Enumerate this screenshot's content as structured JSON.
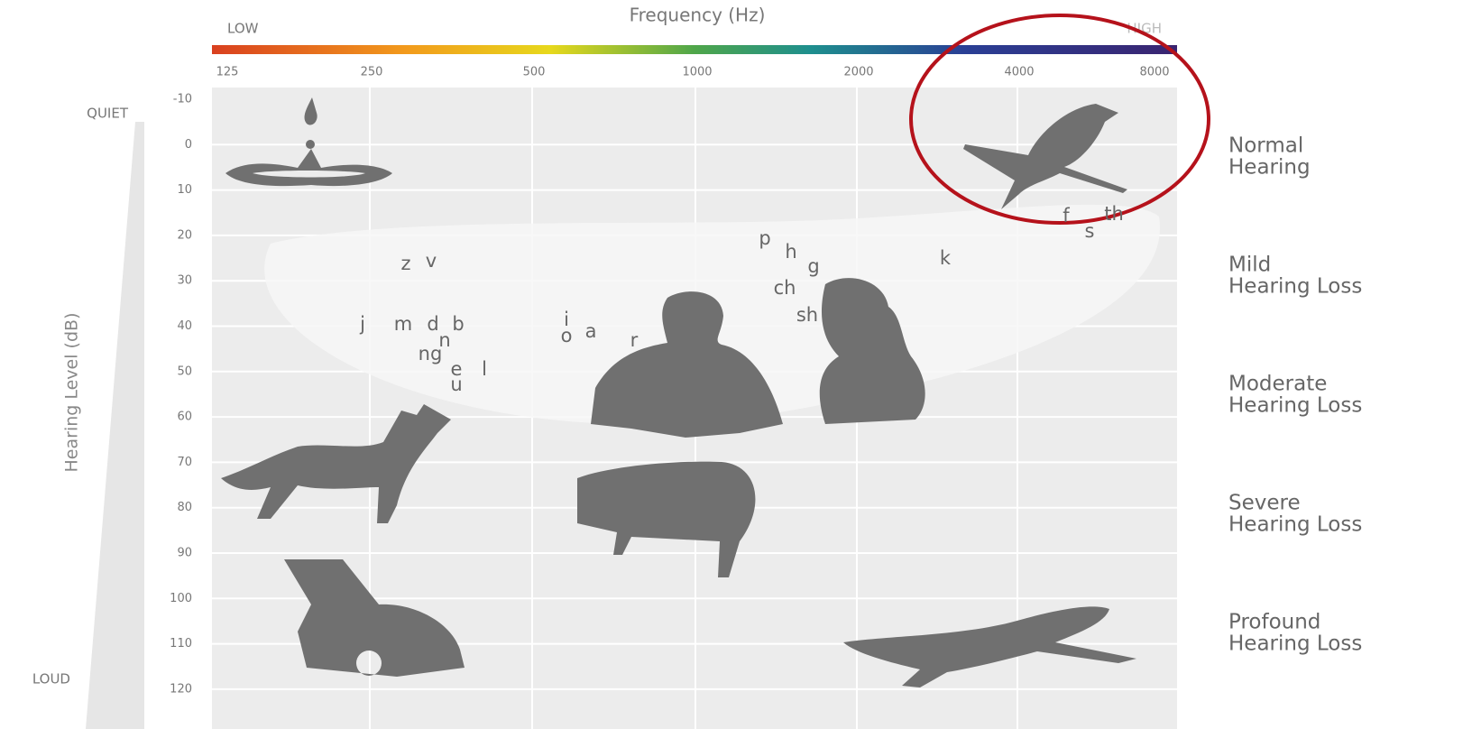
{
  "header": {
    "title": "Frequency (Hz)",
    "low": "LOW",
    "high": "HIGH"
  },
  "x_axis": {
    "ticks": [
      125,
      250,
      500,
      1000,
      2000,
      4000,
      8000
    ]
  },
  "y_axis": {
    "label": "Hearing Level (dB)",
    "top": "QUIET",
    "bottom": "LOUD",
    "ticks": [
      -10,
      0,
      10,
      20,
      30,
      40,
      50,
      60,
      70,
      80,
      90,
      100,
      110,
      120
    ]
  },
  "levels": [
    [
      "Normal",
      "Hearing"
    ],
    [
      "Mild",
      "Hearing Loss"
    ],
    [
      "Moderate",
      "Hearing Loss"
    ],
    [
      "Severe",
      "Hearing Loss"
    ],
    [
      "Profound",
      "Hearing Loss"
    ]
  ],
  "speech_sounds": [
    "z",
    "v",
    "j",
    "m",
    "d",
    "b",
    "n",
    "ng",
    "e",
    "l",
    "u",
    "i",
    "o",
    "a",
    "r",
    "p",
    "h",
    "g",
    "ch",
    "sh",
    "k",
    "f",
    "s",
    "th"
  ]
}
